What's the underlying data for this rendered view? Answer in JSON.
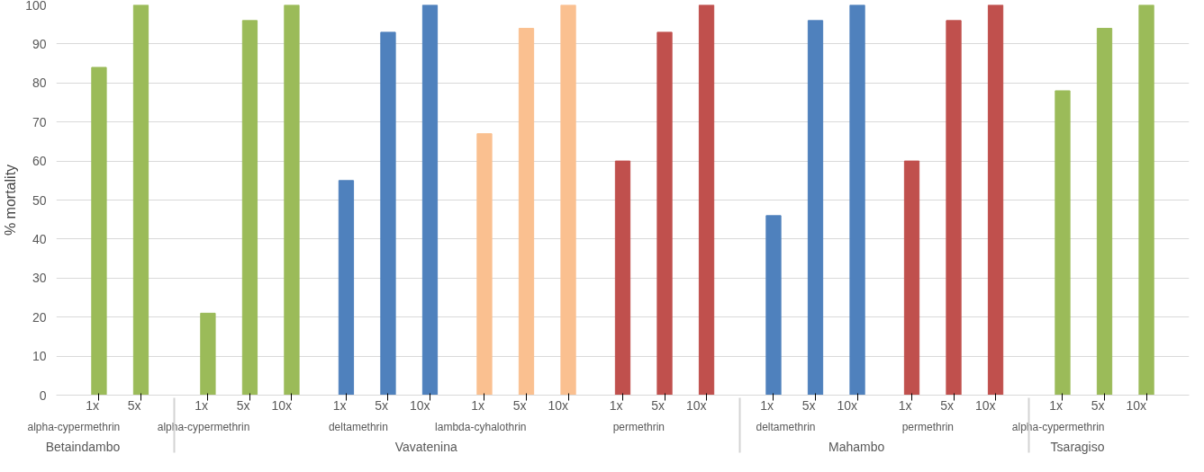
{
  "chart_data": {
    "type": "bar",
    "ylabel": "% mortality",
    "categories": [
      [
        "Betaindambo",
        "alpha-cypermethrin",
        "1x"
      ],
      [
        null,
        null,
        "5x"
      ],
      [
        "Vavatenina",
        "alpha-cypermethrin",
        "1x"
      ],
      [
        null,
        null,
        "5x"
      ],
      [
        null,
        null,
        "10x"
      ],
      [
        null,
        "deltamethrin",
        "1x"
      ],
      [
        null,
        null,
        "5x"
      ],
      [
        null,
        null,
        "10x"
      ],
      [
        null,
        "lambda-cyhalothrin",
        "1x"
      ],
      [
        null,
        null,
        "5x"
      ],
      [
        null,
        null,
        "10x"
      ],
      [
        null,
        "permethrin",
        "1x"
      ],
      [
        null,
        null,
        "5x"
      ],
      [
        null,
        null,
        "10x"
      ],
      [
        "Mahambo",
        "deltamethrin",
        "1x"
      ],
      [
        null,
        null,
        "5x"
      ],
      [
        null,
        null,
        "10x"
      ],
      [
        null,
        "permethrin",
        "1x"
      ],
      [
        null,
        null,
        "5x"
      ],
      [
        null,
        null,
        "10x"
      ],
      [
        "Tsaragiso",
        "alpha-cypermethrin",
        "1x"
      ],
      [
        null,
        null,
        "5x"
      ],
      [
        null,
        null,
        "10x"
      ]
    ],
    "values": [
      84,
      100,
      21,
      96,
      100,
      55,
      93,
      100,
      67,
      94,
      100,
      60,
      93,
      100,
      46,
      96,
      100,
      60,
      96,
      100,
      78,
      94,
      100
    ],
    "colors": [
      "#9bbb59",
      "#9bbb59",
      "#9bbb59",
      "#9bbb59",
      "#9bbb59",
      "#4f81bd",
      "#4f81bd",
      "#4f81bd",
      "#fac090",
      "#fac090",
      "#fac090",
      "#c0504d",
      "#c0504d",
      "#c0504d",
      "#4f81bd",
      "#4f81bd",
      "#4f81bd",
      "#c0504d",
      "#c0504d",
      "#c0504d",
      "#9bbb59",
      "#9bbb59",
      "#9bbb59"
    ],
    "ylim": [
      0,
      100
    ],
    "yticks": [
      0,
      10,
      20,
      30,
      40,
      50,
      60,
      70,
      80,
      90,
      100
    ],
    "grid": "y"
  }
}
